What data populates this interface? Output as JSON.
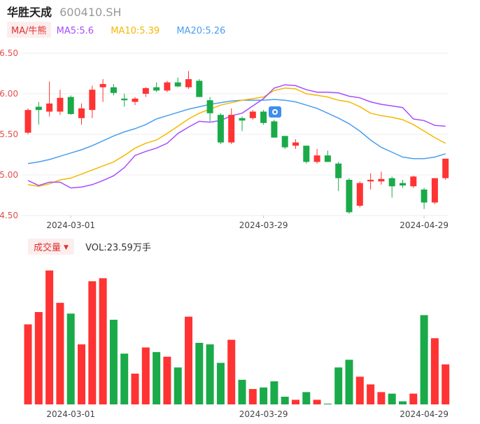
{
  "header": {
    "name": "华胜天成",
    "code": "600410.SH"
  },
  "ma_legend": [
    {
      "label": "MA/牛熊"
    },
    {
      "label": "MA5:5.6"
    },
    {
      "label": "MA10:5.39"
    },
    {
      "label": "MA20:5.26"
    }
  ],
  "volume_legend": {
    "label": "成交量",
    "value": "VOL:23.59万手"
  },
  "colors": {
    "up": "#ff3333",
    "down": "#1aaa4a",
    "ma5": "#a64dff",
    "ma10": "#f5b800",
    "ma20": "#4a9eef",
    "axis_text": "#e05050",
    "grid": "#eeeeee"
  },
  "icons": {
    "marker": "bird-badge-icon",
    "caret": "caret-down-icon"
  },
  "chart_data": [
    {
      "type": "candlestick",
      "ylim": [
        4.5,
        6.5
      ],
      "yticks": [
        "6.50",
        "6.00",
        "5.50",
        "5.00",
        "4.50"
      ],
      "xticks": [
        "2024-03-01",
        "2024-03-29",
        "2024-04-29"
      ],
      "candles": [
        {
          "o": 5.52,
          "h": 5.82,
          "l": 5.5,
          "c": 5.8
        },
        {
          "o": 5.84,
          "h": 5.9,
          "l": 5.62,
          "c": 5.8
        },
        {
          "o": 5.78,
          "h": 6.15,
          "l": 5.72,
          "c": 5.88
        },
        {
          "o": 5.78,
          "h": 6.05,
          "l": 5.74,
          "c": 5.95
        },
        {
          "o": 5.96,
          "h": 5.98,
          "l": 5.74,
          "c": 5.75
        },
        {
          "o": 5.7,
          "h": 5.88,
          "l": 5.62,
          "c": 5.82
        },
        {
          "o": 5.8,
          "h": 6.1,
          "l": 5.7,
          "c": 6.05
        },
        {
          "o": 6.08,
          "h": 6.18,
          "l": 5.9,
          "c": 6.12
        },
        {
          "o": 6.08,
          "h": 6.12,
          "l": 5.98,
          "c": 6.01
        },
        {
          "o": 5.94,
          "h": 6.0,
          "l": 5.84,
          "c": 5.92
        },
        {
          "o": 5.9,
          "h": 5.96,
          "l": 5.86,
          "c": 5.94
        },
        {
          "o": 6.0,
          "h": 6.08,
          "l": 5.96,
          "c": 6.07
        },
        {
          "o": 6.08,
          "h": 6.14,
          "l": 6.02,
          "c": 6.04
        },
        {
          "o": 6.04,
          "h": 6.16,
          "l": 6.02,
          "c": 6.14
        },
        {
          "o": 6.14,
          "h": 6.2,
          "l": 6.08,
          "c": 6.09
        },
        {
          "o": 6.08,
          "h": 6.28,
          "l": 6.06,
          "c": 6.18
        },
        {
          "o": 6.16,
          "h": 6.18,
          "l": 5.96,
          "c": 5.96
        },
        {
          "o": 5.92,
          "h": 5.96,
          "l": 5.66,
          "c": 5.76
        },
        {
          "o": 5.74,
          "h": 5.76,
          "l": 5.38,
          "c": 5.4
        },
        {
          "o": 5.4,
          "h": 5.82,
          "l": 5.38,
          "c": 5.74
        },
        {
          "o": 5.7,
          "h": 5.72,
          "l": 5.54,
          "c": 5.67
        },
        {
          "o": 5.7,
          "h": 5.8,
          "l": 5.68,
          "c": 5.78
        },
        {
          "o": 5.78,
          "h": 5.8,
          "l": 5.62,
          "c": 5.64
        },
        {
          "o": 5.66,
          "h": 5.68,
          "l": 5.46,
          "c": 5.46
        },
        {
          "o": 5.48,
          "h": 5.48,
          "l": 5.32,
          "c": 5.34
        },
        {
          "o": 5.36,
          "h": 5.44,
          "l": 5.32,
          "c": 5.4
        },
        {
          "o": 5.36,
          "h": 5.36,
          "l": 5.14,
          "c": 5.16
        },
        {
          "o": 5.16,
          "h": 5.32,
          "l": 5.14,
          "c": 5.24
        },
        {
          "o": 5.24,
          "h": 5.3,
          "l": 5.16,
          "c": 5.16
        },
        {
          "o": 5.14,
          "h": 5.16,
          "l": 4.8,
          "c": 4.96
        },
        {
          "o": 4.94,
          "h": 4.96,
          "l": 4.52,
          "c": 4.54
        },
        {
          "o": 4.62,
          "h": 4.92,
          "l": 4.6,
          "c": 4.9
        },
        {
          "o": 4.92,
          "h": 5.02,
          "l": 4.82,
          "c": 4.94
        },
        {
          "o": 4.92,
          "h": 5.04,
          "l": 4.88,
          "c": 4.95
        },
        {
          "o": 4.96,
          "h": 4.98,
          "l": 4.72,
          "c": 4.86
        },
        {
          "o": 4.9,
          "h": 4.94,
          "l": 4.84,
          "c": 4.87
        },
        {
          "o": 4.86,
          "h": 4.99,
          "l": 4.84,
          "c": 4.98
        },
        {
          "o": 4.82,
          "h": 4.84,
          "l": 4.58,
          "c": 4.66
        },
        {
          "o": 4.66,
          "h": 4.96,
          "l": 4.64,
          "c": 4.96
        },
        {
          "o": 4.96,
          "h": 5.2,
          "l": 4.94,
          "c": 5.2
        }
      ],
      "ma": {
        "ma5": [
          4.93,
          4.87,
          4.91,
          4.91,
          4.84,
          4.85,
          4.88,
          4.93,
          4.99,
          5.09,
          5.24,
          5.29,
          5.33,
          5.39,
          5.51,
          5.59,
          5.66,
          5.65,
          5.67,
          5.73,
          5.76,
          5.85,
          5.94,
          6.07,
          6.11,
          6.1,
          6.05,
          6.02,
          6.02,
          6.01,
          5.97,
          5.95,
          5.9,
          5.87,
          5.85,
          5.83,
          5.69,
          5.67,
          5.61,
          5.6
        ],
        "ma10": [
          4.88,
          4.86,
          4.89,
          4.94,
          4.96,
          5.01,
          5.06,
          5.11,
          5.16,
          5.24,
          5.33,
          5.39,
          5.43,
          5.51,
          5.6,
          5.69,
          5.76,
          5.81,
          5.86,
          5.89,
          5.92,
          5.94,
          5.96,
          6.04,
          6.07,
          6.06,
          6.0,
          5.98,
          5.96,
          5.92,
          5.9,
          5.84,
          5.76,
          5.73,
          5.71,
          5.68,
          5.62,
          5.54,
          5.46,
          5.39
        ],
        "ma20": [
          5.14,
          5.16,
          5.19,
          5.23,
          5.27,
          5.31,
          5.36,
          5.42,
          5.48,
          5.53,
          5.57,
          5.62,
          5.69,
          5.73,
          5.77,
          5.81,
          5.84,
          5.87,
          5.89,
          5.91,
          5.92,
          5.92,
          5.92,
          5.93,
          5.92,
          5.9,
          5.86,
          5.82,
          5.76,
          5.7,
          5.63,
          5.54,
          5.43,
          5.34,
          5.28,
          5.22,
          5.2,
          5.2,
          5.22,
          5.26
        ]
      }
    },
    {
      "type": "bar",
      "series_name": "成交量",
      "values": [
        52,
        60,
        87,
        66,
        59,
        39,
        80,
        82,
        55,
        33,
        20,
        37,
        34,
        31,
        24,
        57,
        40,
        39,
        27,
        42,
        16,
        10,
        11,
        15,
        5,
        3,
        8,
        3,
        0.5,
        24,
        29,
        18,
        13,
        8,
        7,
        2,
        7,
        58,
        43,
        26
      ],
      "colors": [
        "up",
        "up",
        "up",
        "up",
        "down",
        "up",
        "up",
        "up",
        "down",
        "down",
        "up",
        "up",
        "down",
        "up",
        "down",
        "up",
        "down",
        "down",
        "down",
        "up",
        "down",
        "up",
        "down",
        "down",
        "down",
        "up",
        "down",
        "up",
        "down",
        "down",
        "down",
        "up",
        "up",
        "up",
        "down",
        "down",
        "up",
        "down",
        "up",
        "up"
      ]
    }
  ]
}
